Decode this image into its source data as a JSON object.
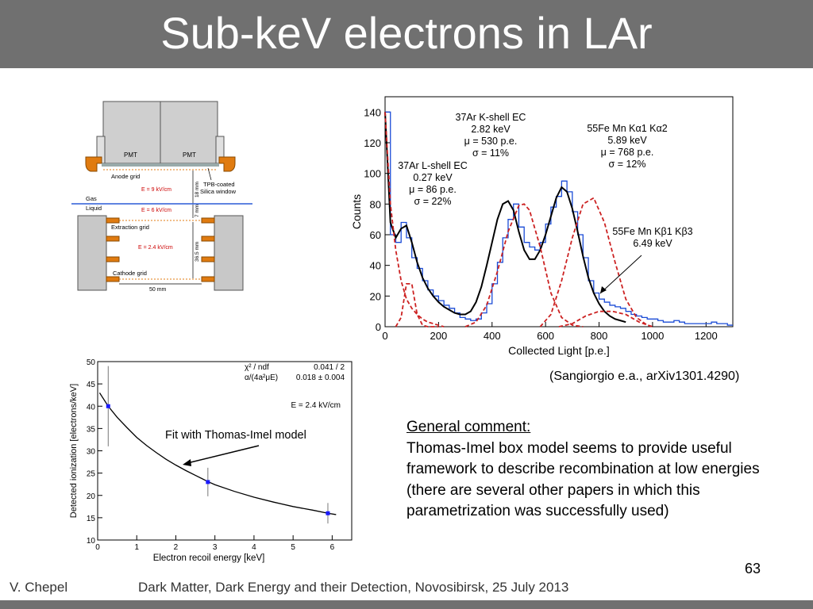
{
  "slide": {
    "title": "Sub-keV electrons in LAr",
    "page_number": "63",
    "footer_author": "V. Chepel",
    "footer_event": "Dark Matter, Dark Energy and their Detection, Novosibirsk, 25 July 2013",
    "citation": "(Sangiorgio e.a., arXiv1301.4290)",
    "comment_heading": "General comment:",
    "comment_body": "Thomas-Imel box model seems to provide useful framework to describe recombination at low energies (there are several other papers in which this parametrization was successfully used)"
  },
  "detector": {
    "pmt_left": "PMT",
    "pmt_right": "PMT",
    "anode_grid": "Anode grid",
    "tpb": "TPB-coated",
    "silica": "Silica window",
    "field_top": "E = 9 kV/cm",
    "dim_18": "18 mm",
    "gas": "Gas",
    "liquid": "Liquid",
    "field_mid": "E = 6 kV/cm",
    "dim_7": "7 mm",
    "extraction_grid": "Extraction grid",
    "field_drift": "E = 2.4 kV/cm",
    "dim_365": "36.5 mm",
    "cathode_grid": "Cathode grid",
    "width": "50 mm",
    "colors": {
      "field_text": "#cc0000",
      "surface": "#2a5bd7",
      "ring": "#e07b10",
      "body": "#c8c8c8"
    }
  },
  "chart_data": [
    {
      "type": "line",
      "title": "",
      "xlabel": "Collected Light [p.e.]",
      "ylabel": "Counts",
      "xlim": [
        0,
        1300
      ],
      "ylim": [
        0,
        150
      ],
      "xticks": [
        0,
        200,
        400,
        600,
        800,
        1000,
        1200
      ],
      "yticks": [
        0,
        20,
        40,
        60,
        80,
        100,
        120,
        140
      ],
      "series": [
        {
          "name": "",
          "color": "#1a4bd6",
          "style": "histogram",
          "x": [
            0,
            20,
            40,
            60,
            80,
            100,
            120,
            140,
            160,
            180,
            200,
            220,
            240,
            260,
            280,
            300,
            320,
            340,
            360,
            380,
            400,
            420,
            440,
            460,
            480,
            500,
            520,
            540,
            560,
            580,
            600,
            620,
            640,
            660,
            680,
            700,
            720,
            740,
            760,
            780,
            800,
            820,
            840,
            860,
            880,
            900,
            920,
            940,
            960,
            980,
            1000,
            1020,
            1040,
            1060,
            1080,
            1100,
            1120,
            1140,
            1160,
            1180,
            1200,
            1220,
            1240,
            1260,
            1280
          ],
          "y": [
            140,
            60,
            55,
            68,
            58,
            45,
            38,
            30,
            24,
            20,
            17,
            14,
            12,
            9,
            6,
            5,
            4,
            5,
            9,
            15,
            28,
            42,
            58,
            70,
            80,
            65,
            55,
            52,
            50,
            55,
            67,
            78,
            85,
            95,
            88,
            75,
            60,
            45,
            30,
            22,
            18,
            16,
            14,
            13,
            12,
            10,
            8,
            7,
            6,
            5,
            5,
            4,
            3,
            3,
            4,
            3,
            2,
            2,
            2,
            2,
            2,
            3,
            2,
            2,
            1
          ]
        },
        {
          "name": "",
          "color": "#000000",
          "style": "fit",
          "x": [
            0,
            20,
            40,
            60,
            80,
            100,
            120,
            140,
            160,
            180,
            200,
            220,
            240,
            260,
            280,
            300,
            320,
            340,
            360,
            380,
            400,
            420,
            440,
            460,
            480,
            500,
            520,
            540,
            560,
            580,
            600,
            620,
            640,
            660,
            680,
            700,
            720,
            740,
            760,
            780,
            800,
            820,
            840,
            860,
            880,
            900
          ],
          "y": [
            140,
            68,
            58,
            64,
            66,
            55,
            42,
            32,
            25,
            20,
            16,
            13,
            11,
            9,
            8,
            8,
            10,
            16,
            26,
            40,
            55,
            70,
            80,
            82,
            76,
            62,
            50,
            44,
            44,
            50,
            60,
            72,
            84,
            91,
            88,
            77,
            62,
            46,
            32,
            22,
            15,
            10,
            7,
            5,
            4,
            3
          ]
        },
        {
          "name": "",
          "color": "#cc2222",
          "style": "component",
          "x": [
            0,
            20,
            40,
            60,
            80,
            100,
            120,
            140,
            160,
            180,
            200,
            220
          ],
          "y": [
            140,
            80,
            50,
            30,
            18,
            12,
            8,
            5,
            3,
            2,
            1,
            0
          ]
        },
        {
          "name": "",
          "color": "#cc2222",
          "style": "component",
          "x": [
            40,
            60,
            80,
            100,
            120,
            140,
            160,
            180,
            200
          ],
          "y": [
            0,
            6,
            28,
            28,
            8,
            1,
            0,
            0,
            0
          ]
        },
        {
          "name": "",
          "color": "#cc2222",
          "style": "component",
          "x": [
            300,
            340,
            380,
            420,
            460,
            500,
            520,
            540,
            580,
            620,
            660,
            700,
            740
          ],
          "y": [
            0,
            3,
            14,
            36,
            62,
            79,
            80,
            76,
            52,
            22,
            6,
            1,
            0
          ]
        },
        {
          "name": "",
          "color": "#cc2222",
          "style": "component",
          "x": [
            580,
            620,
            660,
            700,
            740,
            780,
            820,
            860,
            900,
            940,
            980,
            1000
          ],
          "y": [
            0,
            8,
            30,
            58,
            80,
            84,
            68,
            42,
            18,
            6,
            1,
            0
          ]
        },
        {
          "name": "",
          "color": "#cc2222",
          "style": "component",
          "x": [
            650,
            700,
            750,
            800,
            850,
            900,
            950,
            1000
          ],
          "y": [
            0,
            2,
            7,
            10,
            10,
            8,
            3,
            0
          ]
        }
      ],
      "annotations": [
        {
          "lines": [
            "37Ar K-shell EC",
            "2.82 keV",
            "μ = 530 p.e.",
            "σ = 11%"
          ]
        },
        {
          "lines": [
            "55Fe Mn Kα1 Kα2",
            "5.89 keV",
            "μ = 768 p.e.",
            "σ = 12%"
          ]
        },
        {
          "lines": [
            "37Ar L-shell EC",
            "0.27 keV",
            "μ = 86 p.e.",
            "σ = 22%"
          ]
        },
        {
          "lines": [
            "55Fe Mn Kβ1 Kβ3",
            "6.49 keV"
          ]
        }
      ]
    },
    {
      "type": "scatter",
      "title": "",
      "xlabel": "Electron recoil energy [keV]",
      "ylabel": "Detected ionization [electrons/keV]",
      "xlim": [
        0,
        6.5
      ],
      "ylim": [
        10,
        50
      ],
      "xticks": [
        0,
        1,
        2,
        3,
        4,
        5,
        6
      ],
      "yticks": [
        10,
        15,
        20,
        25,
        30,
        35,
        40,
        45,
        50
      ],
      "series": [
        {
          "name": "",
          "color": "#1a1aff",
          "x": [
            0.27,
            2.82,
            5.89
          ],
          "y": [
            40,
            23,
            16
          ],
          "yerr": [
            9,
            3.2,
            2.3
          ]
        }
      ],
      "fit_curve": {
        "color": "#000000",
        "x": [
          0.05,
          0.27,
          0.5,
          0.75,
          1,
          1.25,
          1.5,
          1.75,
          2,
          2.25,
          2.5,
          2.82,
          3,
          3.5,
          4,
          4.5,
          5,
          5.5,
          5.89,
          6.1
        ],
        "y": [
          43,
          40,
          37.5,
          35.2,
          33,
          31.2,
          29.6,
          28.1,
          26.8,
          25.6,
          24.5,
          23.1,
          22.4,
          20.9,
          19.6,
          18.5,
          17.5,
          16.7,
          16.0,
          15.7
        ]
      },
      "stats": {
        "row1_label": "χ² / ndf",
        "row1_value": "0.041 / 2",
        "row2_label": "α/(4a²μE)",
        "row2_value": "0.018 ± 0.004"
      },
      "field_label": "E = 2.4 kV/cm",
      "fit_caption": "Fit with Thomas-Imel model"
    }
  ]
}
